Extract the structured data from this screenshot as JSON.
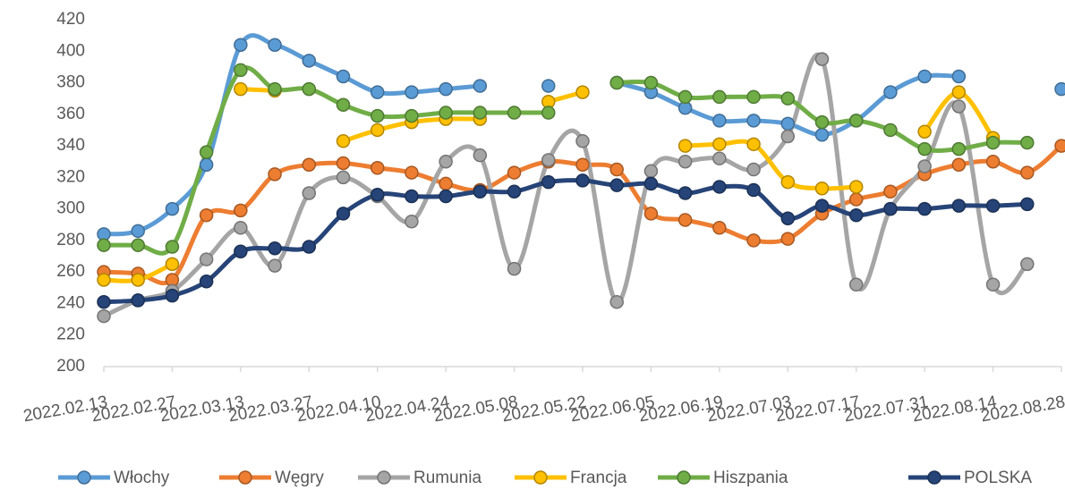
{
  "chart_data": {
    "type": "line",
    "categories": [
      "2022.02.13",
      null,
      "2022.02.27",
      null,
      "2022.03.13",
      null,
      "2022.03.27",
      null,
      "2022.04.10",
      null,
      "2022.04.24",
      null,
      "2022.05.08",
      null,
      "2022.05.22",
      null,
      "2022.06.05",
      null,
      "2022.06.19",
      null,
      "2022.07.03",
      null,
      "2022.07.17",
      null,
      "2022.07.31",
      null,
      "2022.08.14",
      null,
      "2022.08.28"
    ],
    "ylim": [
      200,
      420
    ],
    "yticks": [
      200,
      220,
      240,
      260,
      280,
      300,
      320,
      340,
      360,
      380,
      400,
      420
    ],
    "legend": "bottom",
    "series": [
      {
        "name": "Włochy",
        "color": "#5b9bd5",
        "values": [
          284,
          286,
          300,
          328,
          404,
          404,
          394,
          384,
          374,
          374,
          376,
          378,
          null,
          378,
          null,
          380,
          374,
          364,
          356,
          356,
          354,
          347,
          356,
          374,
          384,
          384,
          null,
          null,
          376
        ]
      },
      {
        "name": "Węgry",
        "color": "#ed7d31",
        "values": [
          260,
          259,
          255,
          296,
          299,
          322,
          328,
          329,
          326,
          323,
          316,
          312,
          323,
          330,
          328,
          325,
          297,
          293,
          288,
          280,
          281,
          297,
          306,
          311,
          322,
          328,
          330,
          323,
          340
        ]
      },
      {
        "name": "Rumunia",
        "color": "#a5a5a5",
        "values": [
          232,
          242,
          248,
          268,
          288,
          264,
          310,
          320,
          308,
          292,
          330,
          334,
          262,
          331,
          343,
          241,
          324,
          330,
          332,
          325,
          346,
          395,
          252,
          300,
          327,
          365,
          252,
          265,
          null
        ]
      },
      {
        "name": "Francja",
        "color": "#ffc000",
        "values": [
          255,
          255,
          265,
          null,
          376,
          375,
          null,
          343,
          350,
          355,
          357,
          357,
          null,
          368,
          374,
          null,
          null,
          340,
          341,
          341,
          317,
          313,
          314,
          null,
          349,
          374,
          345,
          null,
          null
        ]
      },
      {
        "name": "Hiszpania",
        "color": "#70ad47",
        "values": [
          277,
          277,
          276,
          336,
          388,
          376,
          376,
          366,
          359,
          359,
          361,
          361,
          361,
          361,
          null,
          380,
          380,
          371,
          371,
          371,
          370,
          355,
          356,
          350,
          338,
          338,
          342,
          342,
          null
        ]
      },
      {
        "name": "POLSKA",
        "color": "#264478",
        "values": [
          241,
          242,
          245,
          254,
          273,
          275,
          276,
          297,
          309,
          308,
          308,
          311,
          311,
          317,
          318,
          315,
          316,
          310,
          314,
          312,
          294,
          302,
          296,
          300,
          300,
          302,
          302,
          303,
          null
        ]
      }
    ]
  }
}
